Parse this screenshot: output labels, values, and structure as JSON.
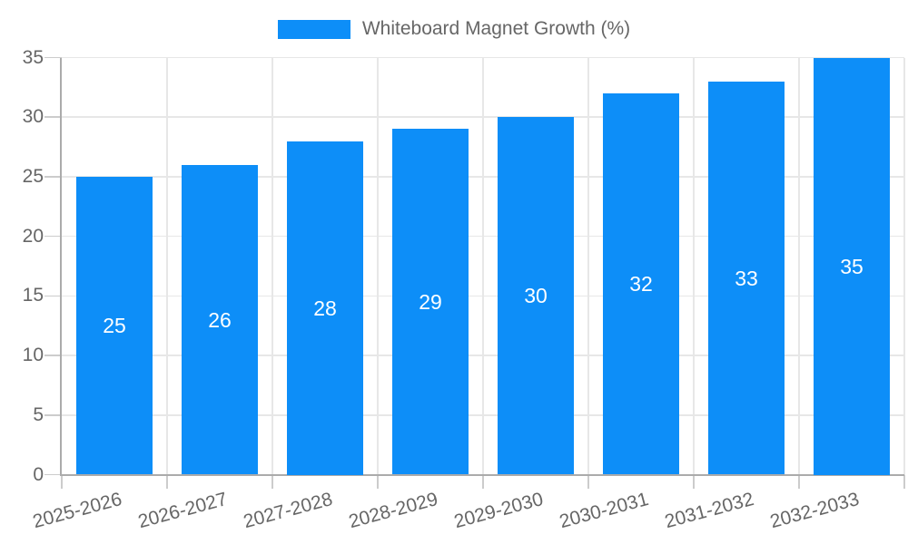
{
  "chart_data": {
    "type": "bar",
    "title": "Whiteboard Magnet Growth (%)",
    "legend_label": "Whiteboard Magnet Growth (%)",
    "legend_position": "top",
    "categories": [
      "2025-2026",
      "2026-2027",
      "2027-2028",
      "2028-2029",
      "2029-2030",
      "2030-2031",
      "2031-2032",
      "2032-2033"
    ],
    "values": [
      25,
      26,
      28,
      29,
      30,
      32,
      33,
      35
    ],
    "value_labels": [
      "25",
      "26",
      "28",
      "29",
      "30",
      "32",
      "33",
      "35"
    ],
    "y_tick_labels": [
      "0",
      "5",
      "10",
      "15",
      "20",
      "25",
      "30",
      "35"
    ],
    "ylim": [
      0,
      35
    ],
    "ytick_step": 5,
    "xlabel": "",
    "ylabel": "",
    "grid": true,
    "colors": {
      "bar": "#0d8ef8",
      "value_label": "#ffffff",
      "axis_text": "#666666",
      "gridline": "#e7e7e7",
      "tick": "#cccccc",
      "axis_line": "#ababab",
      "background": "#ffffff"
    }
  }
}
